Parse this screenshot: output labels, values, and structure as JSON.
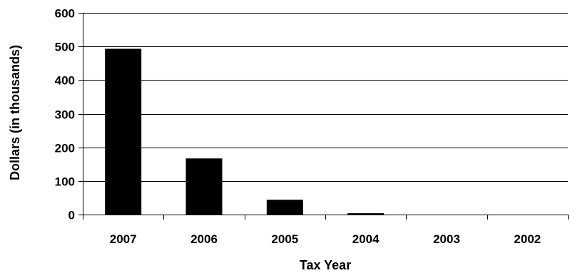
{
  "chart_data": {
    "type": "bar",
    "title": "",
    "xlabel": "Tax Year",
    "ylabel": "Dollars (in thousands)",
    "categories": [
      "2007",
      "2006",
      "2005",
      "2004",
      "2003",
      "2002"
    ],
    "values": [
      493,
      167,
      44,
      4,
      0,
      0
    ],
    "ylim": [
      0,
      600
    ],
    "yticks": [
      "0",
      "100",
      "200",
      "300",
      "400",
      "500",
      "600"
    ],
    "grid": true,
    "legend": "none",
    "bar_color": "#000000",
    "grid_color": "#000000"
  }
}
